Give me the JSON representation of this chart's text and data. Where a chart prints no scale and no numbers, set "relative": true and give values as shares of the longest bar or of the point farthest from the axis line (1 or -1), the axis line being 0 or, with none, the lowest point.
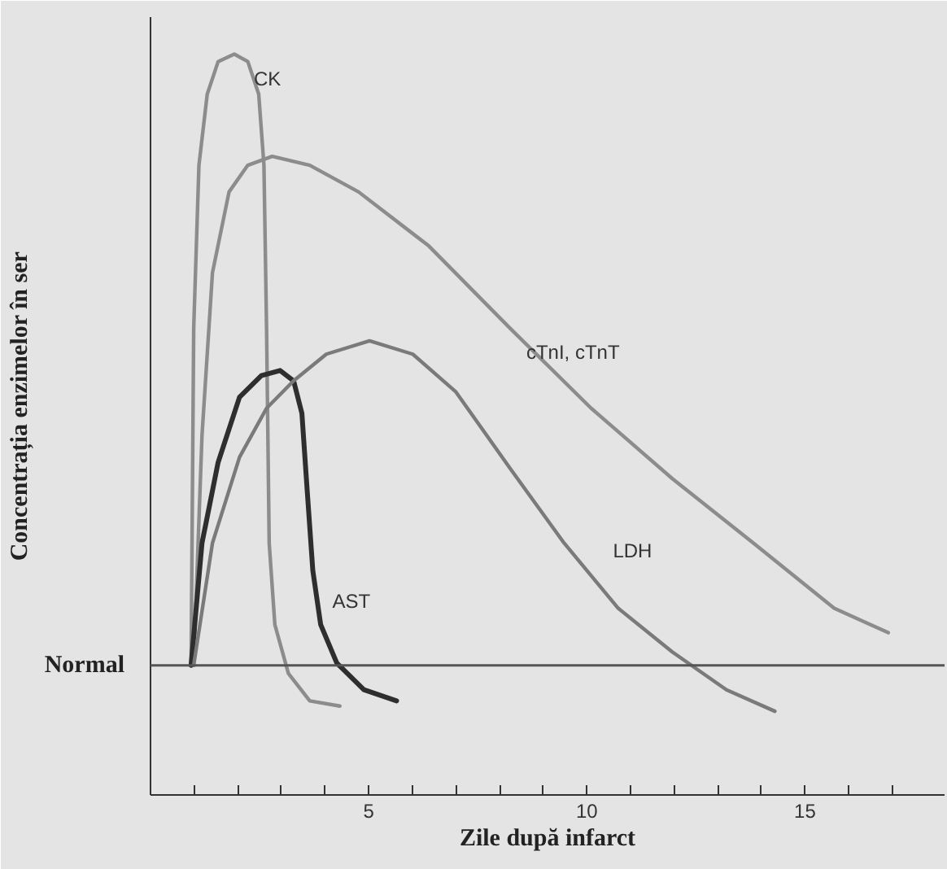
{
  "chart_data": {
    "type": "line",
    "relative": true,
    "xlabel": "Zile după infarct",
    "ylabel": "Concentrația enzimelor în ser",
    "xlim": [
      0,
      18.2
    ],
    "xticks": [
      {
        "value": 1,
        "label": null
      },
      {
        "value": 2,
        "label": null
      },
      {
        "value": 3,
        "label": null
      },
      {
        "value": 4,
        "label": null
      },
      5,
      {
        "value": 6,
        "label": null
      },
      {
        "value": 7,
        "label": null
      },
      {
        "value": 8,
        "label": null
      },
      {
        "value": 9,
        "label": null
      },
      10,
      {
        "value": 11,
        "label": null
      },
      {
        "value": 12,
        "label": null
      },
      {
        "value": 13,
        "label": null
      },
      {
        "value": 14,
        "label": null
      },
      15,
      {
        "value": 16,
        "label": null
      },
      {
        "value": 17,
        "label": null
      }
    ],
    "tick_labels": "x",
    "marker": "none",
    "line_style": "solid",
    "ref_lines": [
      {
        "axis": "y",
        "value": 0.175,
        "label": "Normal",
        "color": "#555555"
      }
    ],
    "series": [
      {
        "name": "CK",
        "color": "#8c8c8c",
        "x": [
          0.93,
          0.99,
          1.11,
          1.3,
          1.55,
          1.92,
          2.23,
          2.48,
          2.6,
          2.66,
          2.72,
          2.85,
          3.16,
          3.65,
          4.34
        ],
        "values": [
          0.175,
          0.63,
          0.85,
          0.946,
          0.99,
          1.0,
          0.99,
          0.946,
          0.85,
          0.63,
          0.34,
          0.23,
          0.164,
          0.127,
          0.12
        ]
      },
      {
        "name": "cTnI, cTnT",
        "color": "#8c8c8c",
        "x": [
          0.99,
          1.18,
          1.42,
          1.8,
          2.23,
          2.79,
          3.65,
          4.77,
          6.38,
          8.24,
          10.1,
          11.96,
          13.82,
          15.67,
          16.91
        ],
        "values": [
          0.175,
          0.485,
          0.705,
          0.814,
          0.85,
          0.862,
          0.85,
          0.814,
          0.741,
          0.63,
          0.522,
          0.427,
          0.34,
          0.252,
          0.219
        ]
      },
      {
        "name": "AST",
        "color": "#2e2e2e",
        "x": [
          0.93,
          1.18,
          1.55,
          2.04,
          2.54,
          2.97,
          3.28,
          3.47,
          3.59,
          3.72,
          3.9,
          4.27,
          4.89,
          5.64
        ],
        "values": [
          0.175,
          0.34,
          0.449,
          0.537,
          0.566,
          0.573,
          0.559,
          0.515,
          0.412,
          0.303,
          0.23,
          0.178,
          0.142,
          0.127
        ]
      },
      {
        "name": "LDH",
        "color": "#7a7a7a",
        "x": [
          0.99,
          1.42,
          2.04,
          2.66,
          3.28,
          4.03,
          5.02,
          6.01,
          7.0,
          8.24,
          9.48,
          10.72,
          11.96,
          13.2,
          14.31
        ],
        "values": [
          0.175,
          0.34,
          0.456,
          0.522,
          0.559,
          0.595,
          0.613,
          0.595,
          0.544,
          0.441,
          0.34,
          0.252,
          0.193,
          0.142,
          0.113
        ]
      }
    ]
  }
}
